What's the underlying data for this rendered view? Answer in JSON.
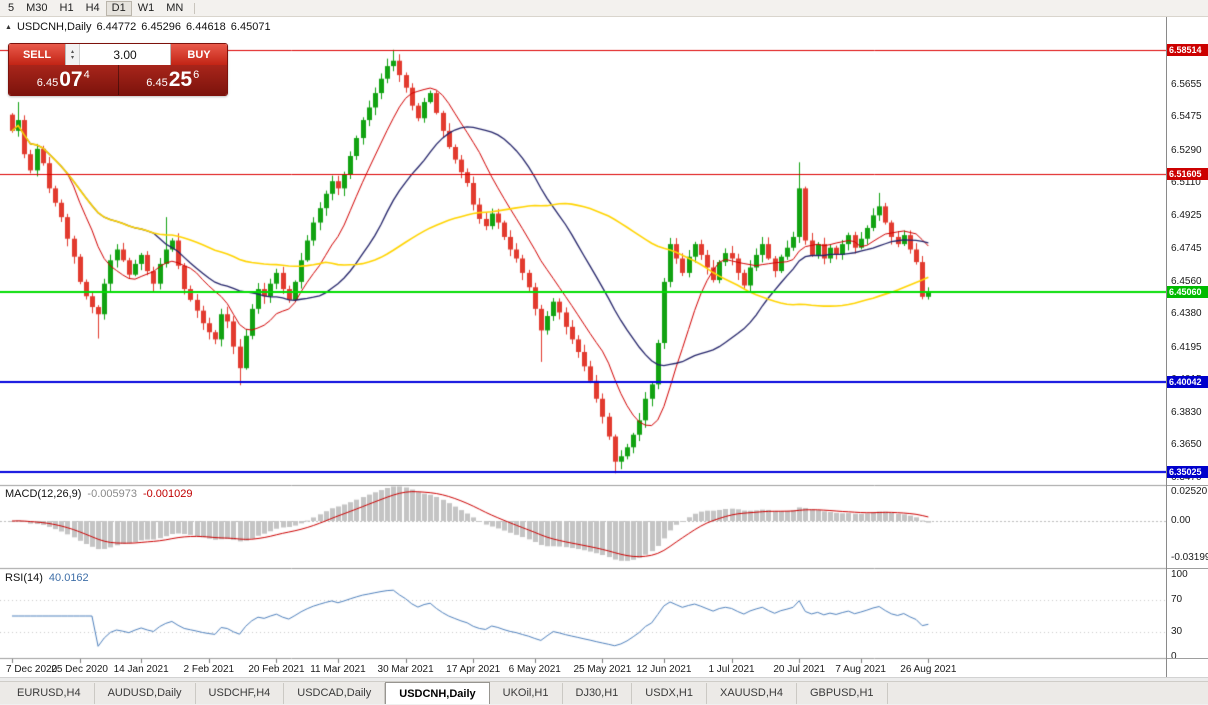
{
  "toolbar": {
    "timeframes": [
      "5",
      "M30",
      "H1",
      "H4",
      "D1",
      "W1",
      "MN"
    ],
    "active": "D1"
  },
  "chart": {
    "readout": {
      "collapse_icon": "▲",
      "title": "USDCNH,Daily",
      "open": "6.44772",
      "high": "6.45296",
      "low": "6.44618",
      "close": "6.45071"
    },
    "trade_panel": {
      "sell_label": "SELL",
      "buy_label": "BUY",
      "volume": "3.00",
      "spinner_up": "▴",
      "spinner_down": "▾",
      "bid_small": "6.45",
      "bid_big": "07",
      "bid_sup": "4",
      "ask_small": "6.45",
      "ask_big": "25",
      "ask_sup": "6"
    }
  },
  "chart_data": {
    "type": "candlestick",
    "symbol": "USDCNH",
    "timeframe": "Daily",
    "first_open": 6.549,
    "closes": [
      6.54,
      6.546,
      6.527,
      6.518,
      6.53,
      6.522,
      6.508,
      6.5,
      6.492,
      6.48,
      6.47,
      6.456,
      6.448,
      6.442,
      6.438,
      6.455,
      6.468,
      6.474,
      6.468,
      6.46,
      6.466,
      6.471,
      6.462,
      6.455,
      6.466,
      6.474,
      6.479,
      6.465,
      6.452,
      6.446,
      6.44,
      6.433,
      6.428,
      6.424,
      6.438,
      6.434,
      6.42,
      6.408,
      6.426,
      6.441,
      6.452,
      6.448,
      6.455,
      6.461,
      6.452,
      6.446,
      6.456,
      6.468,
      6.479,
      6.489,
      6.497,
      6.505,
      6.512,
      6.508,
      6.516,
      6.526,
      6.536,
      6.546,
      6.553,
      6.561,
      6.569,
      6.576,
      6.579,
      6.571,
      6.564,
      6.554,
      6.547,
      6.556,
      6.561,
      6.55,
      6.54,
      6.531,
      6.524,
      6.517,
      6.511,
      6.499,
      6.491,
      6.487,
      6.494,
      6.489,
      6.481,
      6.474,
      6.469,
      6.461,
      6.453,
      6.441,
      6.429,
      6.437,
      6.445,
      6.439,
      6.431,
      6.424,
      6.417,
      6.409,
      6.401,
      6.391,
      6.381,
      6.37,
      6.356,
      6.359,
      6.364,
      6.371,
      6.379,
      6.391,
      6.399,
      6.422,
      6.456,
      6.477,
      6.469,
      6.461,
      6.47,
      6.477,
      6.471,
      6.464,
      6.457,
      6.467,
      6.472,
      6.469,
      6.461,
      6.454,
      6.464,
      6.471,
      6.477,
      6.469,
      6.462,
      6.47,
      6.475,
      6.481,
      6.508,
      6.479,
      6.471,
      6.477,
      6.469,
      6.475,
      6.471,
      6.477,
      6.482,
      6.475,
      6.48,
      6.486,
      6.493,
      6.498,
      6.489,
      6.481,
      6.477,
      6.482,
      6.474,
      6.467,
      6.4477,
      6.4507
    ],
    "wick_overrides": {
      "1": {
        "h": 6.556
      },
      "14": {
        "l": 6.4245
      },
      "25": {
        "h": 6.492
      },
      "37": {
        "l": 6.3985
      },
      "62": {
        "h": 6.5851
      },
      "86": {
        "l": 6.4115
      },
      "98": {
        "l": 6.3495
      },
      "128": {
        "h": 6.5225
      },
      "141": {
        "h": 6.5055
      },
      "149": {
        "h": 6.45296,
        "l": 6.44618
      }
    },
    "x_labels": [
      "7 Dec 2020",
      "25 Dec 2020",
      "14 Jan 2021",
      "2 Feb 2021",
      "20 Feb 2021",
      "11 Mar 2021",
      "30 Mar 2021",
      "17 Apr 2021",
      "6 May 2021",
      "25 May 2021",
      "12 Jun 2021",
      "1 Jul 2021",
      "20 Jul 2021",
      "7 Aug 2021",
      "26 Aug 2021"
    ],
    "y_axis": [
      6.5655,
      6.5475,
      6.529,
      6.511,
      6.4925,
      6.4745,
      6.456,
      6.438,
      6.4195,
      6.4015,
      6.383,
      6.365,
      6.347
    ],
    "hlines": [
      {
        "price": 6.58514,
        "label": "6.58514",
        "color": "#dd0000",
        "tag": "#cc0000",
        "width": 1
      },
      {
        "price": 6.51605,
        "label": "6.51605",
        "color": "#dd0000",
        "tag": "#cc0000",
        "width": 1
      },
      {
        "price": 6.4506,
        "label": "6.45060",
        "color": "#00dd00",
        "tag": "#00bb00",
        "width": 2
      },
      {
        "price": 6.40042,
        "label": "6.40042",
        "color": "#0000dd",
        "tag": "#0000cc",
        "width": 2
      },
      {
        "price": 6.35025,
        "label": "6.35025",
        "color": "#0000dd",
        "tag": "#0000cc",
        "width": 2
      }
    ],
    "colors": {
      "up": "#11a211",
      "down": "#e23a2e"
    },
    "moving_averages": [
      {
        "period": 10,
        "color": "#d20000",
        "width": 1
      },
      {
        "period": 24,
        "color": "#24246a",
        "width": 1.3
      },
      {
        "period": 52,
        "color": "#ffd400",
        "width": 1.6
      }
    ],
    "macd": {
      "label": "MACD(12,26,9)",
      "value_main": "-0.005973",
      "value_signal": "-0.001029",
      "fast": 12,
      "slow": 26,
      "signal": 9,
      "hist_color": "#c4c4c4",
      "signal_color": "#cc0000",
      "axis": [
        {
          "text": "0.02520",
          "v": 0.0252
        },
        {
          "text": "0.00",
          "v": 0
        },
        {
          "text": "-0.03199",
          "v": -0.03199
        }
      ]
    },
    "rsi": {
      "label": "RSI(14)",
      "value": "40.0162",
      "period": 14,
      "color": "#4f81bd",
      "levels": [
        70,
        30
      ],
      "axis": [
        {
          "text": "100",
          "v": 100
        },
        {
          "text": "70",
          "v": 70
        },
        {
          "text": "30",
          "v": 30
        },
        {
          "text": "0",
          "v": 0
        }
      ]
    }
  },
  "tabs": {
    "items": [
      "EURUSD,H4",
      "AUDUSD,Daily",
      "USDCHF,H4",
      "USDCAD,Daily",
      "USDCNH,Daily",
      "UKOil,H1",
      "DJ30,H1",
      "USDX,H1",
      "XAUUSD,H4",
      "GBPUSD,H1"
    ],
    "active_index": 4
  }
}
